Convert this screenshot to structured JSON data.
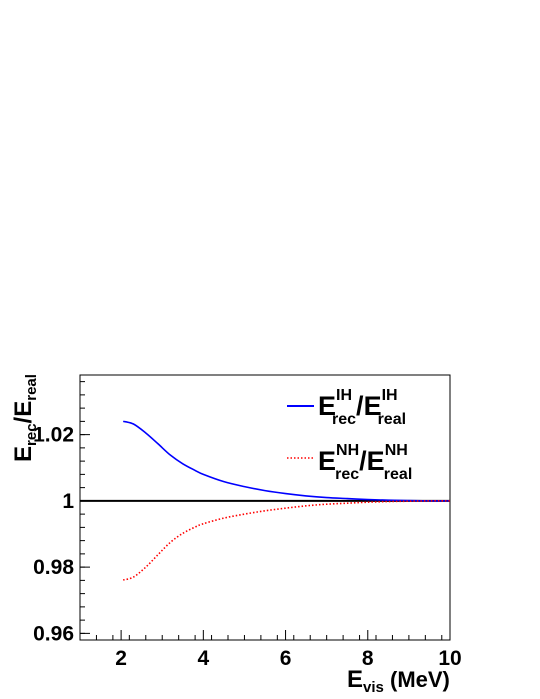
{
  "chart_data": {
    "type": "line",
    "title": "",
    "xlabel": {
      "base": "E",
      "sub": "vis",
      "rest": " (MeV)"
    },
    "ylabel": {
      "num_base": "E",
      "num_sub": "rec",
      "sep": "/",
      "den_base": "E",
      "den_sub": "real"
    },
    "xlim": [
      1,
      10
    ],
    "ylim": [
      0.958,
      1.038
    ],
    "x_ticks": [
      2,
      4,
      6,
      8,
      10
    ],
    "x_tick_labels": [
      "2",
      "4",
      "6",
      "8",
      "10"
    ],
    "y_ticks": [
      0.96,
      0.98,
      1.0,
      1.02
    ],
    "y_tick_labels": [
      "0.96",
      "0.98",
      "1",
      "1.02"
    ],
    "reference_line": 1.0,
    "grid": false,
    "legend_placement": "top-right",
    "series": [
      {
        "id": "ih",
        "legend": {
          "base1": "E",
          "sub1": "rec",
          "sup1": "IH",
          "sep": "/",
          "base2": "E",
          "sub2": "real",
          "sup2": "IH"
        },
        "color": "#0000ff",
        "style": "solid",
        "x": [
          2.05,
          2.3,
          2.6,
          2.9,
          3.2,
          3.5,
          3.8,
          4.0,
          4.5,
          5.0,
          5.5,
          6.0,
          6.5,
          7.0,
          7.5,
          8.0,
          8.5,
          9.0,
          9.5,
          10.0
        ],
        "y": [
          1.024,
          1.0232,
          1.0205,
          1.0172,
          1.0138,
          1.0112,
          1.0092,
          1.008,
          1.0058,
          1.0043,
          1.0031,
          1.0022,
          1.0015,
          1.001,
          1.0007,
          1.0004,
          1.0002,
          1.0001,
          1.0,
          1.0
        ]
      },
      {
        "id": "nh",
        "legend": {
          "base1": "E",
          "sub1": "rec",
          "sup1": "NH",
          "sep": "/",
          "base2": "E",
          "sub2": "real",
          "sup2": "NH"
        },
        "color": "#ff0000",
        "style": "dotted",
        "x": [
          2.05,
          2.3,
          2.6,
          2.9,
          3.2,
          3.5,
          3.8,
          4.0,
          4.5,
          5.0,
          5.5,
          6.0,
          6.5,
          7.0,
          7.5,
          8.0,
          8.5,
          9.0,
          9.5,
          10.0
        ],
        "y": [
          0.9761,
          0.977,
          0.98,
          0.9838,
          0.9875,
          0.9902,
          0.9921,
          0.9931,
          0.9948,
          0.996,
          0.997,
          0.9978,
          0.9985,
          0.999,
          0.9993,
          0.9996,
          0.9998,
          0.9999,
          1.0,
          1.0
        ]
      }
    ]
  }
}
